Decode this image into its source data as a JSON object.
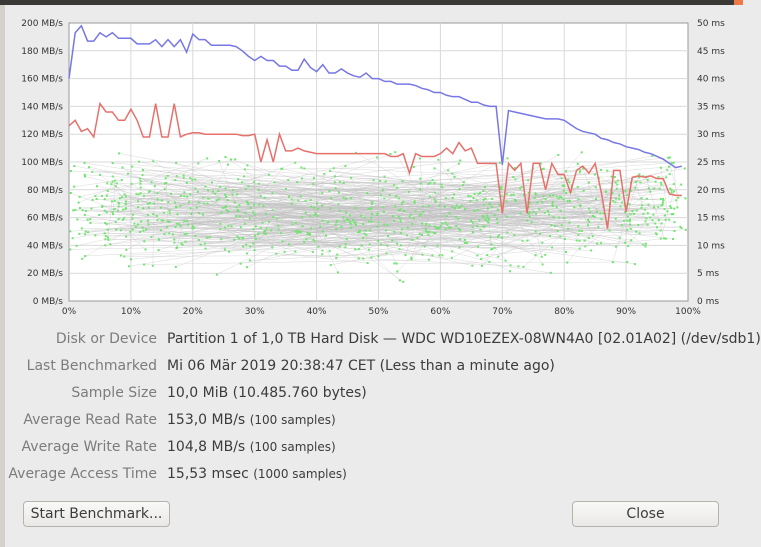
{
  "chart_data": {
    "type": "line",
    "x_ticks": [
      "0%",
      "10%",
      "20%",
      "30%",
      "40%",
      "50%",
      "60%",
      "70%",
      "80%",
      "90%",
      "100%"
    ],
    "y_left_ticks": [
      "0 MB/s",
      "20 MB/s",
      "40 MB/s",
      "60 MB/s",
      "80 MB/s",
      "100 MB/s",
      "120 MB/s",
      "140 MB/s",
      "160 MB/s",
      "180 MB/s",
      "200 MB/s"
    ],
    "y_right_ticks": [
      "0 ms",
      "5 ms",
      "10 ms",
      "15 ms",
      "20 ms",
      "25 ms",
      "30 ms",
      "35 ms",
      "40 ms",
      "45 ms",
      "50 ms"
    ],
    "xlim": [
      0,
      100
    ],
    "ylim_left": [
      0,
      200
    ],
    "ylim_right": [
      0,
      50
    ],
    "grid": true,
    "read_color": "#7777e6",
    "write_color": "#e6716b",
    "access_color": "#6ee66e",
    "series": [
      {
        "x": [
          0,
          1,
          2,
          3,
          4,
          5,
          6,
          7,
          8,
          9,
          10,
          11,
          12,
          13,
          14,
          15,
          16,
          17,
          18,
          19,
          20,
          21,
          22,
          23,
          24,
          25,
          26,
          27,
          28,
          29,
          30,
          31,
          32,
          33,
          34,
          35,
          36,
          37,
          38,
          39,
          40,
          41,
          42,
          43,
          44,
          45,
          46,
          47,
          48,
          49,
          50,
          51,
          52,
          53,
          54,
          55,
          56,
          57,
          58,
          59,
          60,
          61,
          62,
          63,
          64,
          65,
          66,
          67,
          68,
          69,
          70,
          71,
          72,
          73,
          74,
          75,
          76,
          77,
          78,
          79,
          80,
          81,
          82,
          83,
          84,
          85,
          86,
          87,
          88,
          89,
          90,
          91,
          92,
          93,
          94,
          95,
          96,
          97,
          98,
          99
        ],
        "y": [
          160,
          193,
          198,
          187,
          187,
          193,
          190,
          193,
          189,
          189,
          189,
          185,
          185,
          185,
          188,
          183,
          188,
          183,
          188,
          179,
          192,
          188,
          188,
          184,
          184,
          184,
          184,
          183,
          180,
          176,
          173,
          176,
          173,
          173,
          169,
          169,
          166,
          166,
          174,
          168,
          165,
          170,
          164,
          164,
          167,
          164,
          162,
          161,
          164,
          160,
          160,
          158,
          158,
          156,
          156,
          156,
          155,
          153,
          152,
          150,
          150,
          148,
          147,
          147,
          145,
          143,
          143,
          141,
          140,
          140,
          98,
          137,
          136,
          135,
          134,
          133,
          132,
          131,
          131,
          131,
          130,
          127,
          124,
          122,
          121,
          120,
          117,
          116,
          114,
          113,
          111,
          110,
          109,
          107,
          106,
          104,
          102,
          99,
          96,
          97
        ]
      },
      {
        "x": [
          0,
          1,
          2,
          3,
          4,
          5,
          6,
          7,
          8,
          9,
          10,
          11,
          12,
          13,
          14,
          15,
          16,
          17,
          18,
          19,
          20,
          21,
          22,
          23,
          24,
          25,
          26,
          27,
          28,
          29,
          30,
          31,
          32,
          33,
          34,
          35,
          36,
          37,
          38,
          39,
          40,
          41,
          42,
          43,
          44,
          45,
          46,
          47,
          48,
          49,
          50,
          51,
          52,
          53,
          54,
          55,
          56,
          57,
          58,
          59,
          60,
          61,
          62,
          63,
          64,
          65,
          66,
          67,
          68,
          69,
          70,
          71,
          72,
          73,
          74,
          75,
          76,
          77,
          78,
          79,
          80,
          81,
          82,
          83,
          84,
          85,
          86,
          87,
          88,
          89,
          90,
          91,
          92,
          93,
          94,
          95,
          96,
          97,
          98,
          99
        ],
        "y": [
          126,
          130,
          122,
          124,
          118,
          142,
          136,
          136,
          130,
          130,
          138,
          130,
          118,
          118,
          142,
          118,
          118,
          142,
          118,
          120,
          121,
          121,
          120,
          120,
          120,
          120,
          120,
          120,
          119,
          119,
          120,
          100,
          116,
          100,
          120,
          108,
          108,
          110,
          108,
          107,
          106,
          106,
          106,
          106,
          106,
          106,
          106,
          106,
          106,
          106,
          106,
          106,
          104,
          104,
          106,
          92,
          106,
          104,
          104,
          104,
          106,
          110,
          106,
          114,
          108,
          110,
          99,
          99,
          99,
          99,
          63,
          99,
          94,
          99,
          63,
          99,
          99,
          80,
          99,
          91,
          91,
          78,
          94,
          97,
          92,
          99,
          78,
          52,
          94,
          94,
          64,
          89,
          90,
          89,
          90,
          88,
          88,
          77,
          76,
          76
        ]
      },
      {
        "name": "access_samples_ms",
        "points": 1000
      }
    ]
  },
  "info": {
    "disk_label": "Disk or Device",
    "disk_value": "Partition 1 of 1,0 TB Hard Disk — WDC WD10EZEX-08WN4A0 [02.01A02] (/dev/sdb1)",
    "last_label": "Last Benchmarked",
    "last_value": "Mi 06 Mär 2019 20:38:47 CET (Less than a minute ago)",
    "sample_label": "Sample Size",
    "sample_value": "10,0 MiB (10.485.760 bytes)",
    "read_label": "Average Read Rate",
    "read_value": "153,0 MB/s",
    "read_samples": "(100 samples)",
    "write_label": "Average Write Rate",
    "write_value": "104,8 MB/s",
    "write_samples": "(100 samples)",
    "access_label": "Average Access Time",
    "access_value": "15,53 msec",
    "access_samples": "(1000 samples)"
  },
  "buttons": {
    "start_label": "Start Benchmark...",
    "close_label": "Close"
  }
}
